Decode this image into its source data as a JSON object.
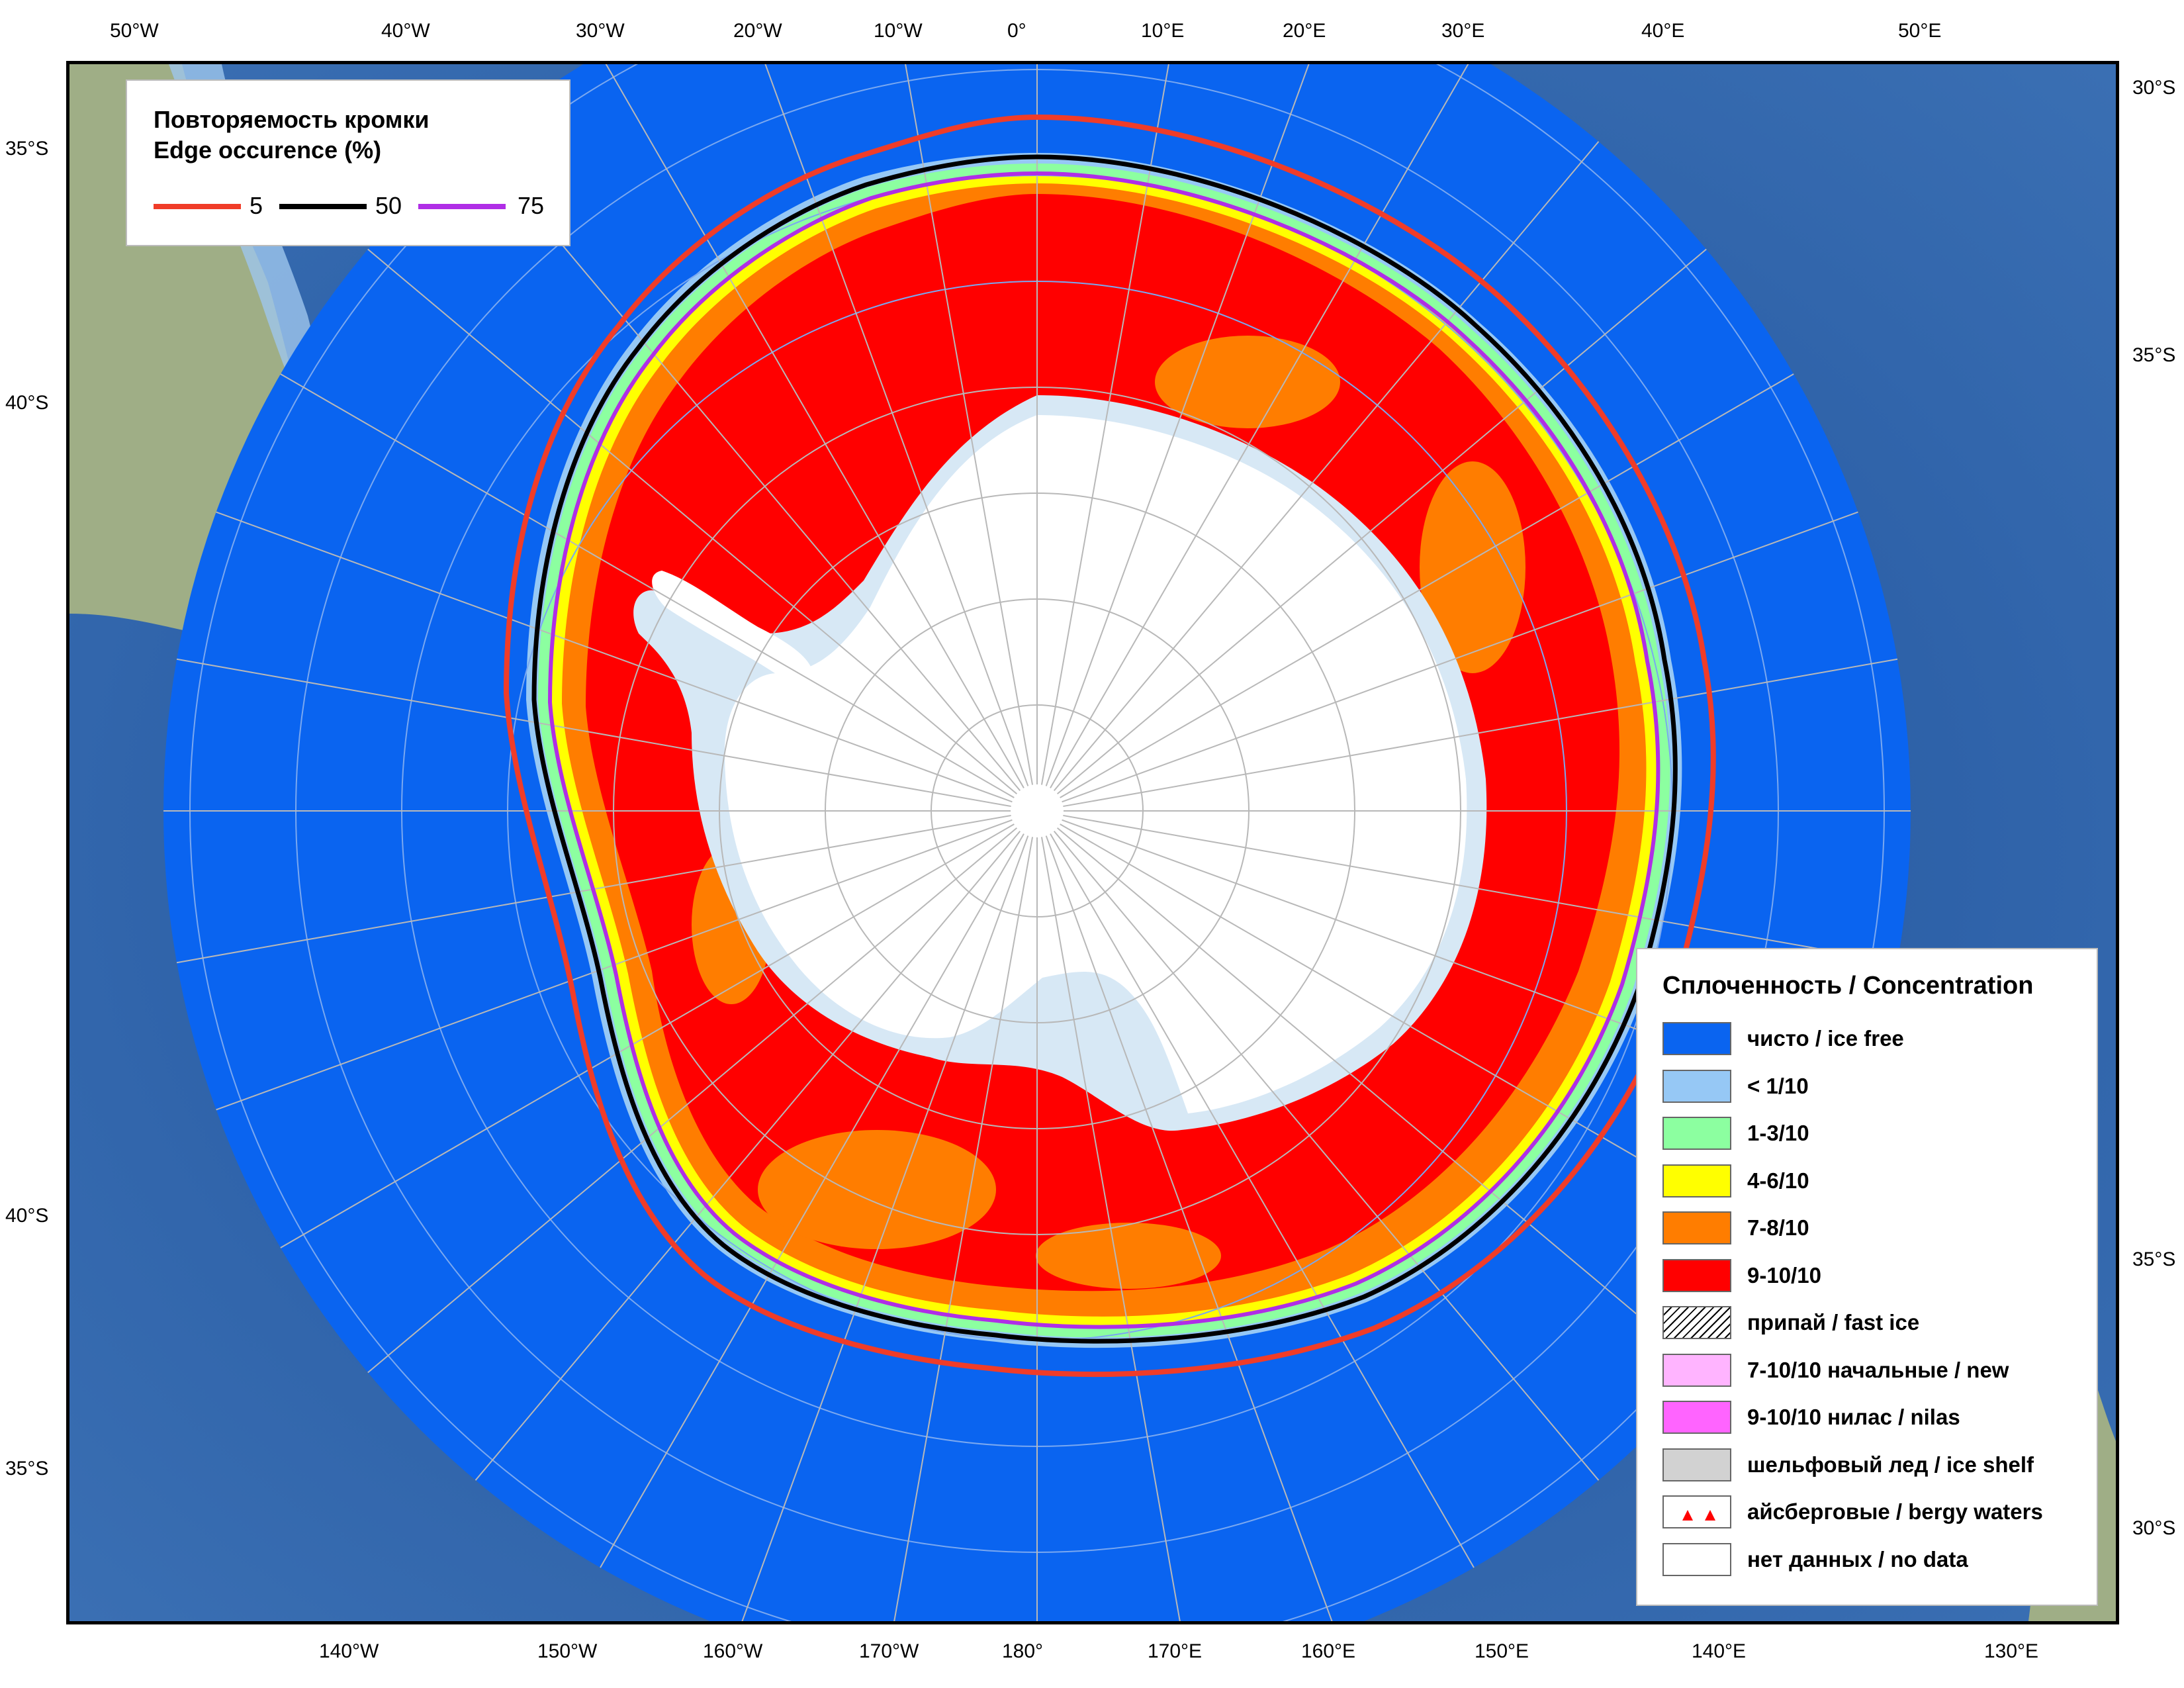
{
  "edge_legend": {
    "title_ru": "Повторяемость кромки",
    "title_en": "Edge occurence (%)",
    "items": [
      {
        "label": "5",
        "color": "#f03c28"
      },
      {
        "label": "50",
        "color": "#000000"
      },
      {
        "label": "75",
        "color": "#b02ee6"
      }
    ]
  },
  "concentration_legend": {
    "title": "Сплоченность / Concentration",
    "items": [
      {
        "label": "чисто / ice free",
        "color": "#0a64f0",
        "pattern": "solid"
      },
      {
        "label": "< 1/10",
        "color": "#96c8f5",
        "pattern": "solid"
      },
      {
        "label": "1-3/10",
        "color": "#8cffa0",
        "pattern": "solid"
      },
      {
        "label": "4-6/10",
        "color": "#ffff00",
        "pattern": "solid"
      },
      {
        "label": "7-8/10",
        "color": "#ff7d00",
        "pattern": "solid"
      },
      {
        "label": "9-10/10",
        "color": "#ff0000",
        "pattern": "solid"
      },
      {
        "label": "припай / fast ice",
        "color": "#ffffff",
        "pattern": "hatch"
      },
      {
        "label": "7-10/10 начальные / new",
        "color": "#ffb4ff",
        "pattern": "solid"
      },
      {
        "label": "9-10/10 нилас / nilas",
        "color": "#ff64ff",
        "pattern": "solid"
      },
      {
        "label": "шельфовый лед / ice shelf",
        "color": "#d2d2d2",
        "pattern": "solid"
      },
      {
        "label": "айсберговые / bergy waters",
        "color": "#ffffff",
        "pattern": "triangles"
      },
      {
        "label": "нет данных / no data",
        "color": "#ffffff",
        "pattern": "solid"
      }
    ]
  },
  "top_axis_labels": [
    "50°W",
    "40°W",
    "30°W",
    "20°W",
    "10°W",
    "0°",
    "10°E",
    "20°E",
    "30°E",
    "40°E",
    "50°E"
  ],
  "bottom_axis_labels": [
    "140°W",
    "150°W",
    "160°W",
    "170°W",
    "180°",
    "170°E",
    "160°E",
    "150°E",
    "140°E",
    "130°E"
  ],
  "left_axis_labels": [
    "35°S",
    "40°S",
    "40°S",
    "35°S"
  ],
  "right_axis_labels": [
    "30°S",
    "35°S",
    "35°S",
    "30°S"
  ],
  "colors": {
    "ocean_ice_free": "#0a64f0",
    "land": "#a8b590",
    "continent": "#ffffff",
    "ice_shelf": "#d7e8f5",
    "concentration_9_10": "#ff0000",
    "concentration_7_8": "#ff7d00",
    "concentration_4_6": "#ffff00",
    "concentration_1_3": "#8cffa0",
    "concentration_lt_1": "#96c8f5"
  }
}
